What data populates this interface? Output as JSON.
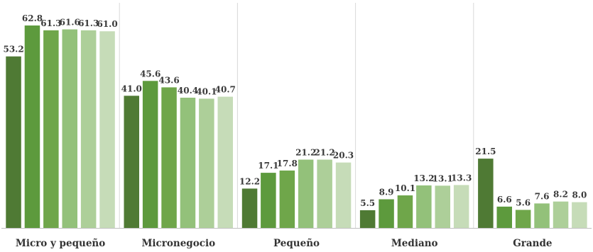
{
  "chart_data": {
    "type": "bar",
    "categories": [
      "Micro y pequeño",
      "Micronegocio",
      "Pequeño",
      "Mediano",
      "Grande"
    ],
    "series": [
      {
        "values": [
          53.2,
          41.0,
          12.2,
          5.5,
          21.5
        ]
      },
      {
        "values": [
          62.8,
          45.6,
          17.1,
          8.9,
          6.6
        ]
      },
      {
        "values": [
          61.3,
          43.6,
          17.8,
          10.1,
          5.6
        ]
      },
      {
        "values": [
          61.6,
          40.4,
          21.2,
          13.2,
          7.6
        ]
      },
      {
        "values": [
          61.3,
          40.1,
          21.2,
          13.1,
          8.2
        ]
      },
      {
        "values": [
          61.0,
          40.7,
          20.3,
          13.3,
          8.0
        ]
      }
    ],
    "ylim": [
      0,
      62.8
    ],
    "grid": false,
    "legend": "none",
    "colors": [
      "#4f7a34",
      "#5d9a3d",
      "#6fa64a",
      "#93c17a",
      "#adcf99",
      "#c6dcb8"
    ],
    "separator_color": "#d9d9d9",
    "axis_color": "#bfbfbf"
  }
}
